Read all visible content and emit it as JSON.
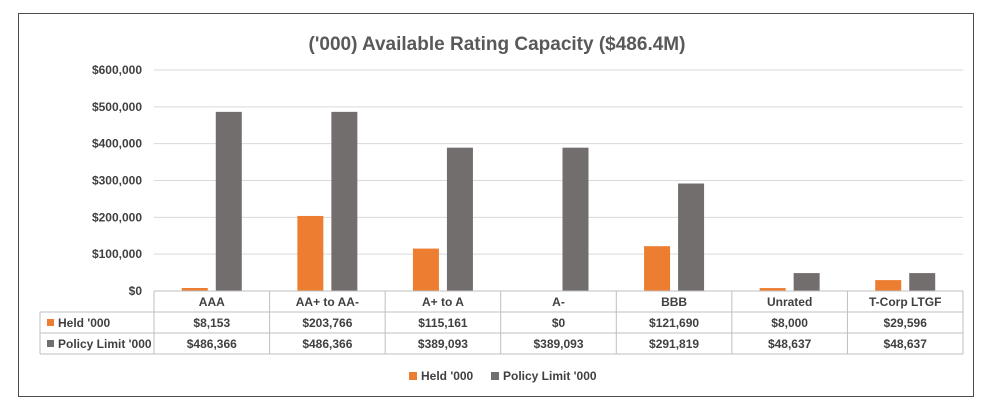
{
  "chart_data": {
    "type": "bar",
    "title": "('000) Available Rating Capacity ($486.4M)",
    "categories": [
      "AAA",
      "AA+ to AA-",
      "A+ to A",
      "A-",
      "BBB",
      "Unrated",
      "T-Corp LTGF"
    ],
    "ylim": [
      0,
      600000
    ],
    "y_ticks": [
      "$0",
      "$100,000",
      "$200,000",
      "$300,000",
      "$400,000",
      "$500,000",
      "$600,000"
    ],
    "y_tick_values": [
      0,
      100000,
      200000,
      300000,
      400000,
      500000,
      600000
    ],
    "grid": true,
    "legend_position": "bottom",
    "series": [
      {
        "name": "Held '000",
        "color": "#ed7d31",
        "values": [
          8153,
          203766,
          115161,
          0,
          121690,
          8000,
          29596
        ],
        "labels": [
          "$8,153",
          "$203,766",
          "$115,161",
          "$0",
          "$121,690",
          "$8,000",
          "$29,596"
        ]
      },
      {
        "name": "Policy Limit '000",
        "color": "#736e6e",
        "values": [
          486366,
          486366,
          389093,
          389093,
          291819,
          48637,
          48637
        ],
        "labels": [
          "$486,366",
          "$486,366",
          "$389,093",
          "$389,093",
          "$291,819",
          "$48,637",
          "$48,637"
        ]
      }
    ]
  }
}
